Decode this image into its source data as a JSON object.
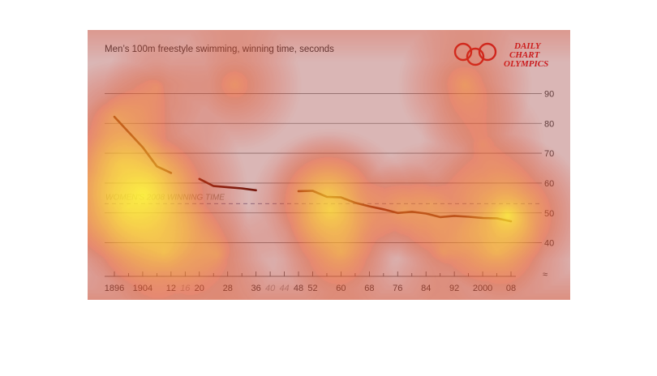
{
  "chart_data": {
    "type": "line",
    "title": "Men’s 100m freestyle swimming, winning time, seconds",
    "brand": [
      "DAILY",
      "CHART",
      "OLYMPICS"
    ],
    "overlay": "attention-heatmap",
    "y_ticks": [
      "90",
      "80",
      "70",
      "60",
      "50",
      "40"
    ],
    "ylim": [
      35,
      95
    ],
    "y_axis_break": true,
    "x_tick_labels": [
      {
        "label": "1896",
        "x": 1896
      },
      {
        "label": "1904",
        "x": 1904
      },
      {
        "label": "12",
        "x": 1912
      },
      {
        "label": "16",
        "x": 1916,
        "cancelled": true
      },
      {
        "label": "20",
        "x": 1920
      },
      {
        "label": "28",
        "x": 1928
      },
      {
        "label": "36",
        "x": 1936
      },
      {
        "label": "40",
        "x": 1940,
        "cancelled": true
      },
      {
        "label": "44",
        "x": 1944,
        "cancelled": true
      },
      {
        "label": "48",
        "x": 1948
      },
      {
        "label": "52",
        "x": 1952
      },
      {
        "label": "60",
        "x": 1960
      },
      {
        "label": "68",
        "x": 1968
      },
      {
        "label": "76",
        "x": 1976
      },
      {
        "label": "84",
        "x": 1984
      },
      {
        "label": "92",
        "x": 1992
      },
      {
        "label": "2000",
        "x": 2000
      },
      {
        "label": "08",
        "x": 2008
      }
    ],
    "x_minor_ticks": [
      1900,
      1908,
      1924,
      1932,
      1956,
      1964,
      1972,
      1980,
      1988,
      1996,
      2004
    ],
    "series": [
      {
        "color": "#5a1408",
        "segments": [
          {
            "x": [
              1896,
              1904,
              1908,
              1912
            ],
            "y": [
              82.2,
              72,
              65.6,
              63.4
            ]
          },
          {
            "x": [
              1920,
              1924,
              1928,
              1932,
              1936
            ],
            "y": [
              61.4,
              59.0,
              58.6,
              58.2,
              57.6
            ]
          },
          {
            "x": [
              1948,
              1952,
              1956,
              1960,
              1964,
              1968,
              1972,
              1976,
              1980,
              1984,
              1988,
              1992,
              1996,
              2000,
              2004,
              2008
            ],
            "y": [
              57.3,
              57.4,
              55.4,
              55.2,
              53.4,
              52.2,
              51.2,
              50.0,
              50.4,
              49.8,
              48.6,
              49.0,
              48.7,
              48.3,
              48.2,
              47.2
            ]
          }
        ]
      }
    ],
    "reference_line": {
      "label": "WOMEN'S 2008 WINNING TIME",
      "y": 53.1,
      "style": "dashed"
    },
    "grid": true,
    "heatmap_spots": [
      {
        "x": 1904,
        "y": 56,
        "r": 0.22,
        "strength": 1.0
      },
      {
        "x": 1900,
        "y": 52,
        "r": 0.16,
        "strength": 0.7
      },
      {
        "x": 1896,
        "y": 82,
        "r": 0.12,
        "strength": 0.55
      },
      {
        "x": 2007,
        "y": 49,
        "r": 0.17,
        "strength": 0.95
      },
      {
        "x": 1957,
        "y": 51,
        "r": 0.17,
        "strength": 0.8
      },
      {
        "x": 1956,
        "y": 57,
        "r": 0.12,
        "strength": 0.55
      },
      {
        "x": 1985,
        "y": 53,
        "r": 0.13,
        "strength": 0.5
      },
      {
        "x": 1978,
        "y": 51,
        "r": 0.1,
        "strength": 0.45
      },
      {
        "x": 1910,
        "y": 37,
        "r": 0.13,
        "strength": 0.6
      },
      {
        "x": 1925,
        "y": 36,
        "r": 0.12,
        "strength": 0.55
      },
      {
        "x": 1960,
        "y": 37,
        "r": 0.12,
        "strength": 0.55
      },
      {
        "x": 1989,
        "y": 37,
        "r": 0.11,
        "strength": 0.5
      },
      {
        "x": 2004,
        "y": 37,
        "r": 0.1,
        "strength": 0.5
      },
      {
        "x": 1930,
        "y": 93,
        "r": 0.14,
        "strength": 0.55
      },
      {
        "x": 1908,
        "y": 92,
        "r": 0.11,
        "strength": 0.5
      },
      {
        "x": 1995,
        "y": 93,
        "r": 0.14,
        "strength": 0.6
      },
      {
        "x": 2000,
        "y": 73,
        "r": 0.13,
        "strength": 0.45
      },
      {
        "x": 1898,
        "y": 66,
        "r": 0.1,
        "strength": 0.4
      }
    ]
  }
}
